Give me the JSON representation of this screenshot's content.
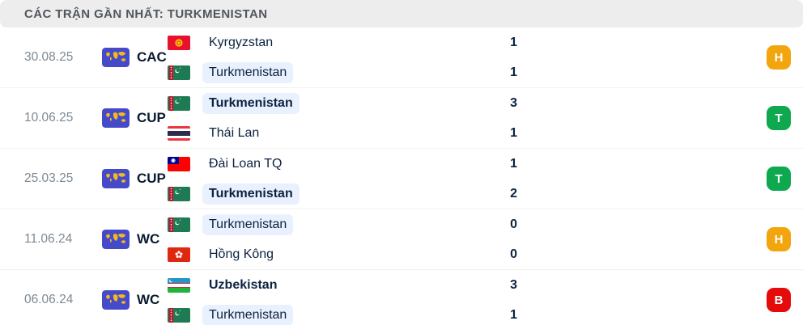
{
  "header": {
    "title": "CÁC TRẬN GẦN NHẤT: TURKMENISTAN"
  },
  "colors": {
    "win_badge": "#0EA94F",
    "draw_badge": "#F2A50C",
    "loss_badge": "#E60B0B",
    "highlight_pill": "#E9F1FE",
    "comp_icon_bg": "#454BC8",
    "header_bg": "#EDEDED"
  },
  "matches": [
    {
      "date": "30.08.25",
      "competition": "CAC",
      "result": {
        "label": "H",
        "type": "draw"
      },
      "teams": [
        {
          "name": "Kyrgyzstan",
          "flag": "kyrgyzstan",
          "score": "1",
          "bold": false,
          "highlighted": false
        },
        {
          "name": "Turkmenistan",
          "flag": "turkmenistan",
          "score": "1",
          "bold": false,
          "highlighted": true
        }
      ]
    },
    {
      "date": "10.06.25",
      "competition": "CUP",
      "result": {
        "label": "T",
        "type": "win"
      },
      "teams": [
        {
          "name": "Turkmenistan",
          "flag": "turkmenistan",
          "score": "3",
          "bold": true,
          "highlighted": true
        },
        {
          "name": "Thái Lan",
          "flag": "thailand",
          "score": "1",
          "bold": false,
          "highlighted": false
        }
      ]
    },
    {
      "date": "25.03.25",
      "competition": "CUP",
      "result": {
        "label": "T",
        "type": "win"
      },
      "teams": [
        {
          "name": "Đài Loan TQ",
          "flag": "taiwan",
          "score": "1",
          "bold": false,
          "highlighted": false
        },
        {
          "name": "Turkmenistan",
          "flag": "turkmenistan",
          "score": "2",
          "bold": true,
          "highlighted": true
        }
      ]
    },
    {
      "date": "11.06.24",
      "competition": "WC",
      "result": {
        "label": "H",
        "type": "draw"
      },
      "teams": [
        {
          "name": "Turkmenistan",
          "flag": "turkmenistan",
          "score": "0",
          "bold": false,
          "highlighted": true
        },
        {
          "name": "Hồng Kông",
          "flag": "hong-kong",
          "score": "0",
          "bold": false,
          "highlighted": false
        }
      ]
    },
    {
      "date": "06.06.24",
      "competition": "WC",
      "result": {
        "label": "B",
        "type": "loss"
      },
      "teams": [
        {
          "name": "Uzbekistan",
          "flag": "uzbekistan",
          "score": "3",
          "bold": true,
          "highlighted": false
        },
        {
          "name": "Turkmenistan",
          "flag": "turkmenistan",
          "score": "1",
          "bold": false,
          "highlighted": true
        }
      ]
    }
  ]
}
